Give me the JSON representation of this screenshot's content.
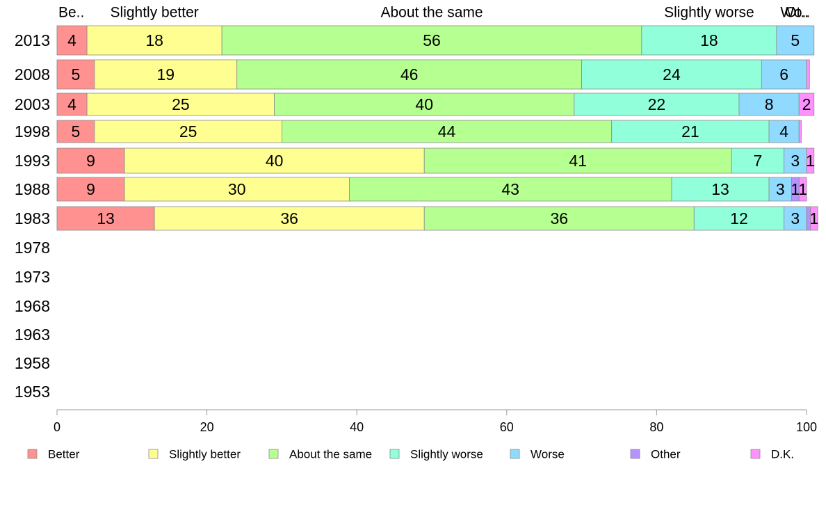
{
  "chart_data": {
    "type": "bar",
    "orientation": "horizontal",
    "stacked": true,
    "xlim": [
      0,
      100
    ],
    "x_ticks": [
      "0",
      "20",
      "40",
      "60",
      "80",
      "100"
    ],
    "categories": [
      "2013",
      "2008",
      "2003",
      "1998",
      "1993",
      "1988",
      "1983",
      "1978",
      "1973",
      "1968",
      "1963",
      "1958",
      "1953"
    ],
    "top_labels": [
      "Be..",
      "Slightly better",
      "About the same",
      "Slightly worse",
      "Wo..",
      "Ot.."
    ],
    "legend_position": "bottom",
    "series": [
      {
        "name": "Better",
        "color": "#ff9191",
        "values": [
          4,
          5,
          4,
          5,
          9,
          9,
          13,
          null,
          null,
          null,
          null,
          null,
          null
        ]
      },
      {
        "name": "Slightly better",
        "color": "#ffff91",
        "values": [
          18,
          19,
          25,
          25,
          40,
          30,
          36,
          null,
          null,
          null,
          null,
          null,
          null
        ]
      },
      {
        "name": "About the same",
        "color": "#b6ff91",
        "values": [
          56,
          46,
          40,
          44,
          41,
          43,
          36,
          null,
          null,
          null,
          null,
          null,
          null
        ]
      },
      {
        "name": "Slightly worse",
        "color": "#91ffda",
        "values": [
          18,
          24,
          22,
          21,
          7,
          13,
          12,
          null,
          null,
          null,
          null,
          null,
          null
        ]
      },
      {
        "name": "Worse",
        "color": "#91daff",
        "values": [
          5,
          6,
          8,
          4,
          3,
          3,
          3,
          null,
          null,
          null,
          null,
          null,
          null
        ]
      },
      {
        "name": "Other",
        "color": "#b691ff",
        "values": [
          0,
          0,
          0,
          0,
          0,
          1,
          0.5,
          null,
          null,
          null,
          null,
          null,
          null
        ]
      },
      {
        "name": "D.K.",
        "color": "#ff91ff",
        "values": [
          0,
          0.4,
          2,
          0.3,
          1,
          1,
          1,
          null,
          null,
          null,
          null,
          null,
          null
        ]
      }
    ]
  }
}
